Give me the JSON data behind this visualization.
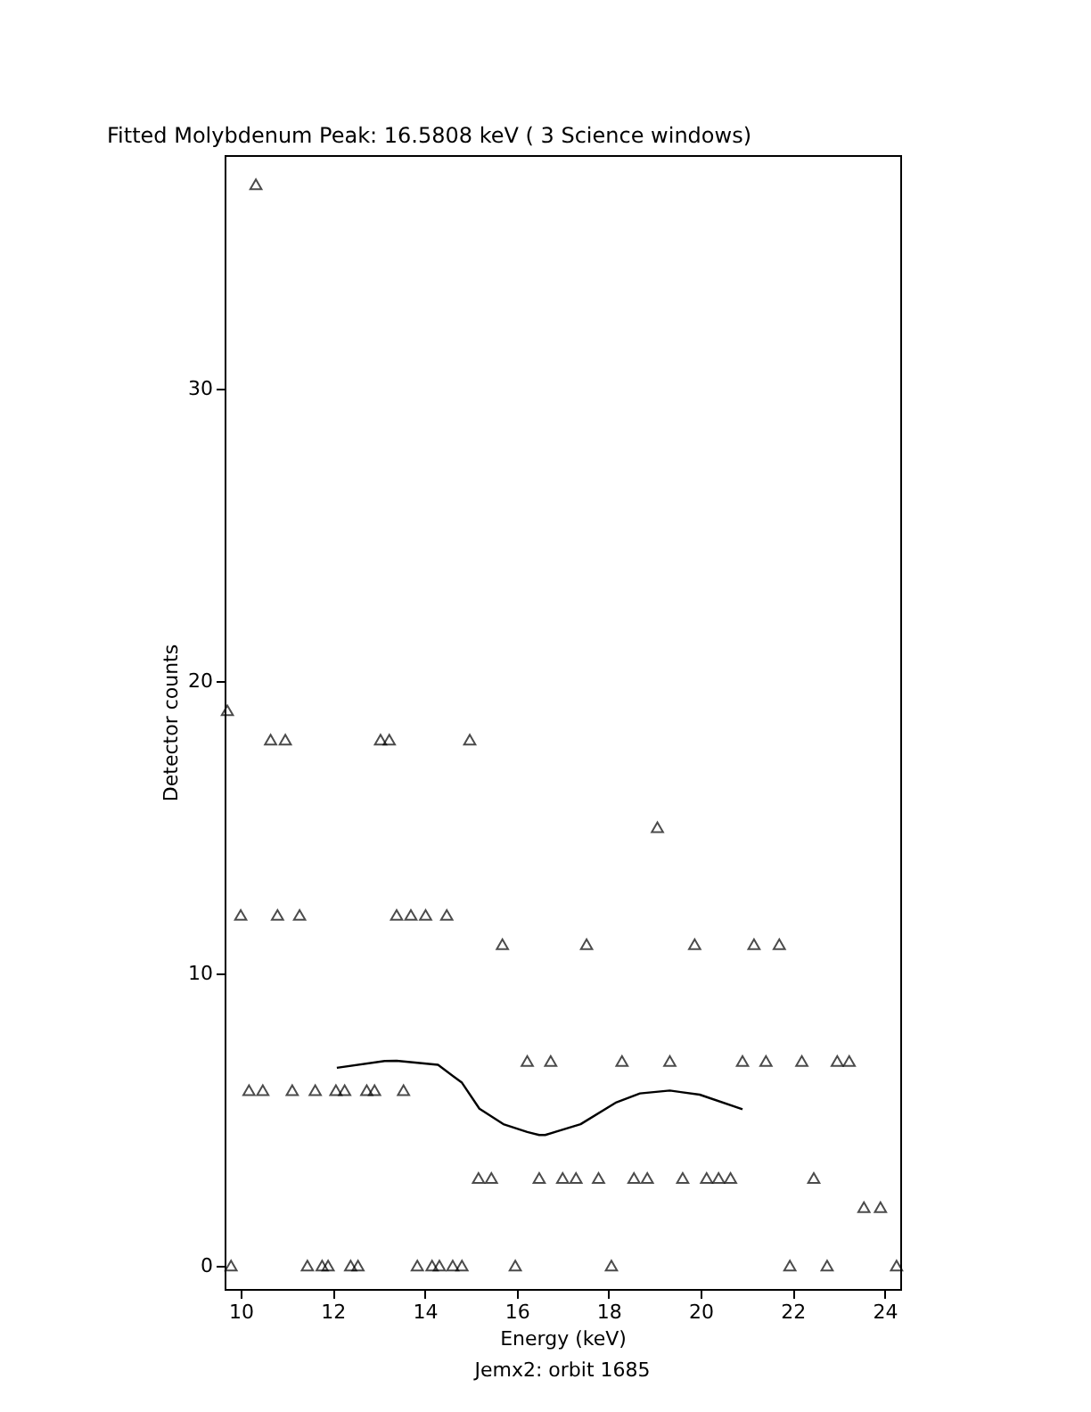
{
  "chart_data": {
    "type": "scatter",
    "title": "Fitted Molybdenum Peak:      16.5808 keV (       3 Science windows)",
    "xlabel": "Energy (keV)",
    "ylabel": "Detector counts",
    "annotations": [
      "Jemx2: orbit 1685"
    ],
    "xlim": [
      9.65,
      24.34
    ],
    "ylim": [
      -0.8,
      38
    ],
    "xticks": [
      10,
      12,
      14,
      16,
      18,
      20,
      22,
      24
    ],
    "yticks": [
      0,
      10,
      20,
      30
    ],
    "grid": false,
    "series": [
      {
        "type": "scatter",
        "marker": "triangle",
        "color": "#000000",
        "x": [
          9.79,
          11.45,
          11.77,
          11.9,
          12.39,
          12.55,
          13.84,
          14.16,
          14.32,
          14.61,
          14.81,
          15.97,
          18.06,
          21.94,
          22.75,
          24.26,
          23.55,
          23.91,
          15.17,
          15.45,
          16.49,
          17.0,
          17.29,
          17.78,
          18.55,
          18.84,
          19.61,
          20.13,
          20.39,
          20.65,
          22.46,
          10.18,
          10.48,
          11.12,
          11.62,
          12.07,
          12.26,
          12.74,
          12.91,
          13.54,
          16.23,
          16.74,
          18.29,
          19.33,
          20.91,
          21.42,
          22.2,
          22.97,
          23.23,
          15.69,
          17.52,
          19.87,
          21.16,
          21.71,
          10.0,
          10.8,
          11.28,
          13.39,
          13.7,
          14.02,
          14.48,
          19.06,
          10.65,
          10.97,
          13.04,
          13.23,
          14.98,
          9.71,
          10.33
        ],
        "values": [
          0,
          0,
          0,
          0,
          0,
          0,
          0,
          0,
          0,
          0,
          0,
          0,
          0,
          0,
          0,
          0,
          2,
          2,
          3,
          3,
          3,
          3,
          3,
          3,
          3,
          3,
          3,
          3,
          3,
          3,
          3,
          6,
          6,
          6,
          6,
          6,
          6,
          6,
          6,
          6,
          7,
          7,
          7,
          7,
          7,
          7,
          7,
          7,
          7,
          11,
          11,
          11,
          11,
          11,
          12,
          12,
          12,
          12,
          12,
          12,
          12,
          15,
          18,
          18,
          18,
          18,
          18,
          19,
          37
        ]
      },
      {
        "type": "line",
        "marker": "none",
        "line_style": "solid",
        "color": "#000000",
        "x": [
          12.09,
          13.13,
          13.39,
          14.29,
          14.81,
          15.19,
          15.71,
          16.23,
          16.49,
          16.62,
          17.39,
          18.17,
          18.68,
          19.33,
          19.98,
          20.91
        ],
        "values": [
          6.77,
          7.0,
          7.01,
          6.87,
          6.26,
          5.37,
          4.84,
          4.57,
          4.47,
          4.47,
          4.84,
          5.59,
          5.89,
          5.99,
          5.85,
          5.35
        ]
      }
    ]
  }
}
